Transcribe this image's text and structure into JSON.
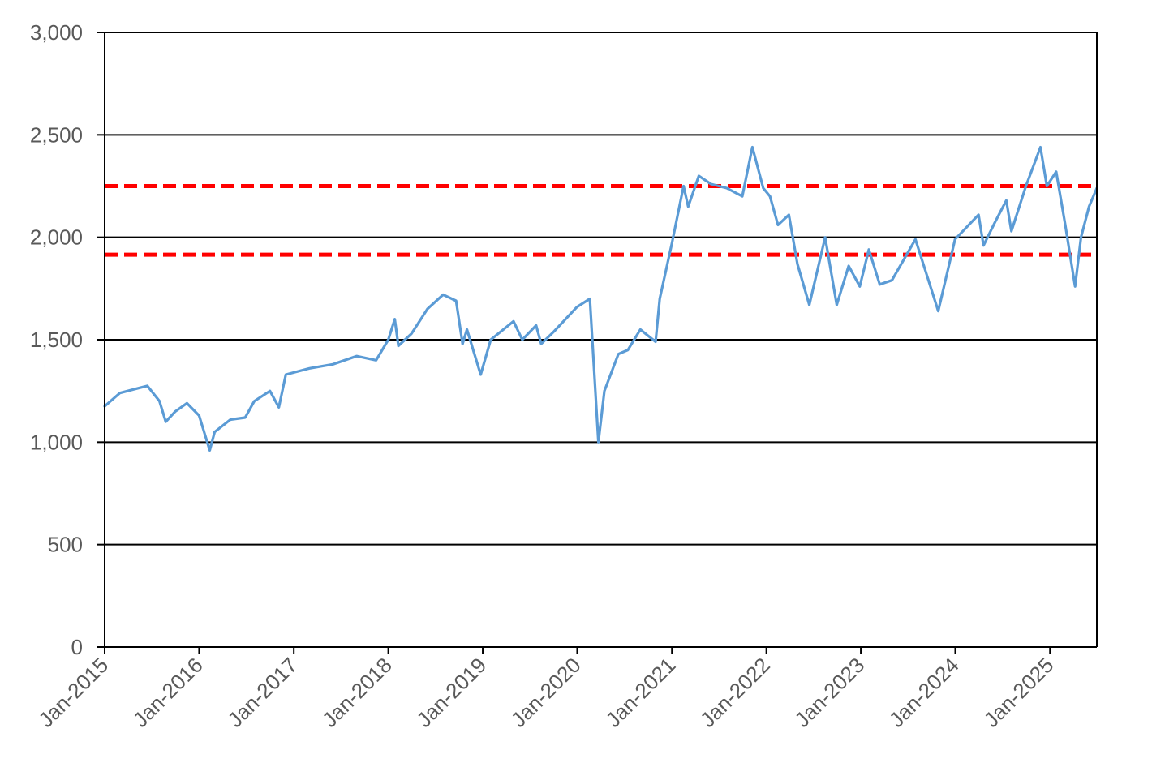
{
  "chart_data": {
    "type": "line",
    "title": "",
    "xlabel": "",
    "ylabel": "",
    "xlim": [
      "2015-01-01",
      "2025-07-01"
    ],
    "ylim": [
      0,
      3000
    ],
    "y_ticks": [
      0,
      500,
      1000,
      1500,
      2000,
      2500,
      3000
    ],
    "y_tick_labels": [
      "0",
      "500",
      "1,000",
      "1,500",
      "2,000",
      "2,500",
      "3,000"
    ],
    "x_ticks": [
      "2015-01-01",
      "2016-01-01",
      "2017-01-01",
      "2018-01-01",
      "2019-01-01",
      "2020-01-01",
      "2021-01-01",
      "2022-01-01",
      "2023-01-01",
      "2024-01-01",
      "2025-01-01"
    ],
    "x_tick_labels": [
      "Jan-2015",
      "Jan-2016",
      "Jan-2017",
      "Jan-2018",
      "Jan-2019",
      "Jan-2020",
      "Jan-2021",
      "Jan-2022",
      "Jan-2023",
      "Jan-2024",
      "Jan-2025"
    ],
    "grid": "horizontal",
    "legend": "none",
    "series": [
      {
        "color": "#5B9BD5",
        "x": [
          "2015-01-01",
          "2015-03-01",
          "2015-05-01",
          "2015-06-15",
          "2015-08-01",
          "2015-08-25",
          "2015-10-01",
          "2015-11-15",
          "2016-01-01",
          "2016-02-11",
          "2016-03-01",
          "2016-05-01",
          "2016-06-27",
          "2016-08-01",
          "2016-10-01",
          "2016-11-04",
          "2016-12-01",
          "2017-03-01",
          "2017-06-01",
          "2017-09-01",
          "2017-11-15",
          "2018-01-01",
          "2018-01-26",
          "2018-02-09",
          "2018-04-01",
          "2018-06-01",
          "2018-08-01",
          "2018-09-20",
          "2018-10-15",
          "2018-11-01",
          "2018-12-24",
          "2019-02-01",
          "2019-04-30",
          "2019-06-03",
          "2019-07-26",
          "2019-08-15",
          "2019-10-03",
          "2019-12-31",
          "2020-02-19",
          "2020-03-23",
          "2020-04-15",
          "2020-06-08",
          "2020-07-15",
          "2020-09-01",
          "2020-10-30",
          "2020-11-15",
          "2021-01-01",
          "2021-02-15",
          "2021-03-05",
          "2021-04-15",
          "2021-06-01",
          "2021-08-01",
          "2021-09-30",
          "2021-11-08",
          "2021-12-20",
          "2022-01-15",
          "2022-02-15",
          "2022-03-29",
          "2022-05-01",
          "2022-06-16",
          "2022-08-16",
          "2022-09-30",
          "2022-11-15",
          "2022-12-28",
          "2023-02-01",
          "2023-03-15",
          "2023-05-01",
          "2023-07-31",
          "2023-10-27",
          "2023-12-31",
          "2024-03-31",
          "2024-04-19",
          "2024-06-01",
          "2024-07-16",
          "2024-08-05",
          "2024-09-30",
          "2024-11-25",
          "2024-12-20",
          "2025-01-25",
          "2025-03-01",
          "2025-04-08",
          "2025-05-01",
          "2025-06-01",
          "2025-07-01"
        ],
        "y": [
          1175,
          1240,
          1260,
          1275,
          1200,
          1100,
          1150,
          1190,
          1130,
          960,
          1050,
          1110,
          1120,
          1200,
          1250,
          1170,
          1330,
          1360,
          1380,
          1420,
          1400,
          1500,
          1600,
          1470,
          1530,
          1650,
          1720,
          1690,
          1480,
          1550,
          1330,
          1500,
          1590,
          1500,
          1570,
          1480,
          1540,
          1660,
          1700,
          1000,
          1250,
          1430,
          1450,
          1550,
          1490,
          1700,
          1970,
          2250,
          2150,
          2300,
          2260,
          2240,
          2200,
          2440,
          2240,
          2200,
          2060,
          2110,
          1870,
          1670,
          2000,
          1670,
          1860,
          1760,
          1940,
          1770,
          1790,
          1990,
          1640,
          1990,
          2110,
          1960,
          2070,
          2180,
          2030,
          2250,
          2440,
          2250,
          2320,
          2060,
          1760,
          2000,
          2150,
          2240
        ]
      }
    ],
    "reference_lines": [
      {
        "y": 2250,
        "color": "#FF0000",
        "style": "dashed"
      },
      {
        "y": 1915,
        "color": "#FF0000",
        "style": "dashed"
      }
    ]
  }
}
